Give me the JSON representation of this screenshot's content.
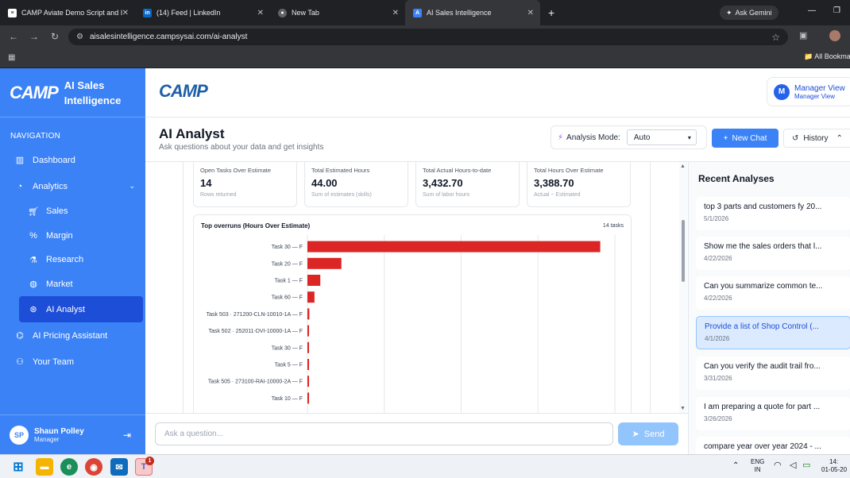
{
  "browser": {
    "tabs": [
      {
        "label": "CAMP Aviate Demo Script and I",
        "icon": "google-docs-icon"
      },
      {
        "label": "(14) Feed | LinkedIn",
        "icon": "linkedin-icon"
      },
      {
        "label": "New Tab",
        "icon": "chrome-icon"
      },
      {
        "label": "AI Sales Intelligence",
        "icon": "app-icon"
      }
    ],
    "new_tab": "+",
    "gemini": "Ask Gemini",
    "url": "aisalesintelligence.campsysai.com/ai-analyst",
    "bookmarks_label": "All Bookma"
  },
  "sidebar": {
    "logo": "CAMP",
    "brand_line1": "AI Sales",
    "brand_line2": "Intelligence",
    "nav_label": "NAVIGATION",
    "items": [
      {
        "label": "Dashboard",
        "icon": "bar-chart-icon"
      },
      {
        "label": "Analytics",
        "icon": "pie-chart-icon"
      },
      {
        "label": "Sales",
        "icon": "cart-icon"
      },
      {
        "label": "Margin",
        "icon": "percent-icon"
      },
      {
        "label": "Research",
        "icon": "microscope-icon"
      },
      {
        "label": "Market",
        "icon": "globe-icon"
      },
      {
        "label": "AI Analyst",
        "icon": "brain-icon"
      },
      {
        "label": "AI Pricing Assistant",
        "icon": "robot-icon"
      },
      {
        "label": "Your Team",
        "icon": "users-icon"
      }
    ],
    "user": {
      "initials": "SP",
      "name": "Shaun Polley",
      "role": "Manager"
    }
  },
  "header": {
    "logo": "CAMP",
    "view_initial": "M",
    "view_title": "Manager View",
    "view_sub": "Manager View"
  },
  "page": {
    "title": "AI Analyst",
    "subtitle": "Ask questions about your data and get insights",
    "mode_label": "Analysis Mode:",
    "mode_value": "Auto",
    "new_chat": "New Chat",
    "history": "History"
  },
  "kpis": [
    {
      "label": "Open Tasks Over Estimate",
      "value": "14",
      "note": "Rows returned"
    },
    {
      "label": "Total Estimated Hours",
      "value": "44.00",
      "note": "Sum of estimates (skills)"
    },
    {
      "label": "Total Actual Hours-to-date",
      "value": "3,432.70",
      "note": "Sum of labor hours"
    },
    {
      "label": "Total Hours Over Estimate",
      "value": "3,388.70",
      "note": "Actual − Estimated"
    }
  ],
  "chart_data": {
    "type": "bar",
    "orientation": "horizontal",
    "title": "Top overruns (Hours Over Estimate)",
    "count_label": "14 tasks",
    "categories": [
      "Task 30 — F",
      "Task 20 — F",
      "Task 1 — F",
      "Task 60 — F",
      "Task 503 · 271200-CLN-10010-1A — F",
      "Task 502 · 252011-DVI-10000-1A — F",
      "Task 30 — F",
      "Task 5 — F",
      "Task 505 · 273100-RAI-10000-2A — F",
      "Task 10 — F"
    ],
    "values": [
      2500,
      290,
      110,
      60,
      16,
      13,
      7,
      6,
      4,
      3
    ],
    "grid": true,
    "bar_color": "#dc2626"
  },
  "composer": {
    "placeholder": "Ask a question...",
    "send": "Send"
  },
  "recent": {
    "title": "Recent Analyses",
    "items": [
      {
        "q": "top 3 parts and customers fy 20...",
        "d": "5/1/2026"
      },
      {
        "q": "Show me the sales orders that l...",
        "d": "4/22/2026"
      },
      {
        "q": "Can you summarize common te...",
        "d": "4/22/2026"
      },
      {
        "q": "Provide a list of Shop Control (...",
        "d": "4/1/2026"
      },
      {
        "q": "Can you verify the audit trail fro...",
        "d": "3/31/2026"
      },
      {
        "q": "I am preparing a quote for part ...",
        "d": "3/26/2026"
      },
      {
        "q": "compare year over year 2024 - ...",
        "d": ""
      }
    ]
  },
  "taskbar": {
    "lang1": "ENG",
    "lang2": "IN",
    "time": "14:",
    "date": "01-05-20",
    "teams_badge": "1"
  }
}
